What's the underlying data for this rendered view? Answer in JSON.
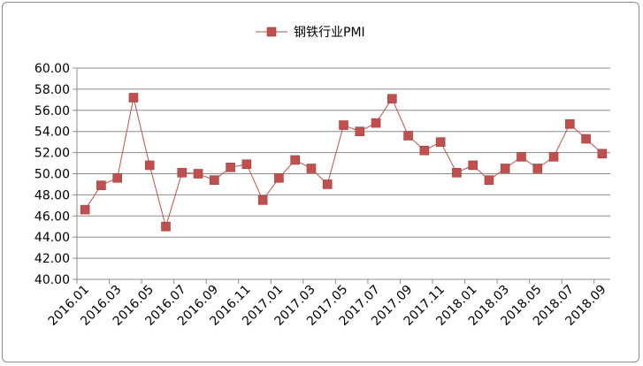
{
  "chart_data": {
    "type": "line",
    "title": "",
    "xlabel": "",
    "ylabel": "",
    "legend": {
      "position": "top",
      "label": "钢铁行业PMI"
    },
    "series": [
      {
        "name": "钢铁行业PMI",
        "color": "#c0504d",
        "marker": "square",
        "values": [
          46.6,
          48.9,
          49.6,
          57.2,
          50.8,
          45.0,
          50.1,
          50.0,
          49.4,
          50.6,
          50.9,
          47.5,
          49.6,
          51.3,
          50.5,
          49.0,
          54.6,
          54.0,
          54.8,
          57.1,
          53.6,
          52.2,
          53.0,
          50.1,
          50.8,
          49.4,
          50.5,
          51.6,
          50.5,
          51.6,
          54.7,
          53.3,
          51.9
        ]
      }
    ],
    "x": [
      "2016.01",
      "2016.02",
      "2016.03",
      "2016.04",
      "2016.05",
      "2016.06",
      "2016.07",
      "2016.08",
      "2016.09",
      "2016.10",
      "2016.11",
      "2016.12",
      "2017.01",
      "2017.02",
      "2017.03",
      "2017.04",
      "2017.05",
      "2017.06",
      "2017.07",
      "2017.08",
      "2017.09",
      "2017.10",
      "2017.11",
      "2017.12",
      "2018.01",
      "2018.02",
      "2018.03",
      "2018.04",
      "2018.05",
      "2018.06",
      "2018.07",
      "2018.08",
      "2018.09"
    ],
    "x_tick_labels": [
      "2016.01",
      "2016.03",
      "2016.05",
      "2016.07",
      "2016.09",
      "2016.11",
      "2017.01",
      "2017.03",
      "2017.05",
      "2017.07",
      "2017.09",
      "2017.11",
      "2018.01",
      "2018.03",
      "2018.05",
      "2018.07",
      "2018.09"
    ],
    "y_tick_labels": [
      "40.00",
      "42.00",
      "44.00",
      "46.00",
      "48.00",
      "50.00",
      "52.00",
      "54.00",
      "56.00",
      "58.00",
      "60.00"
    ],
    "ylim": [
      40,
      60
    ],
    "y_step": 2,
    "grid": {
      "horizontal": true,
      "vertical": false
    }
  }
}
